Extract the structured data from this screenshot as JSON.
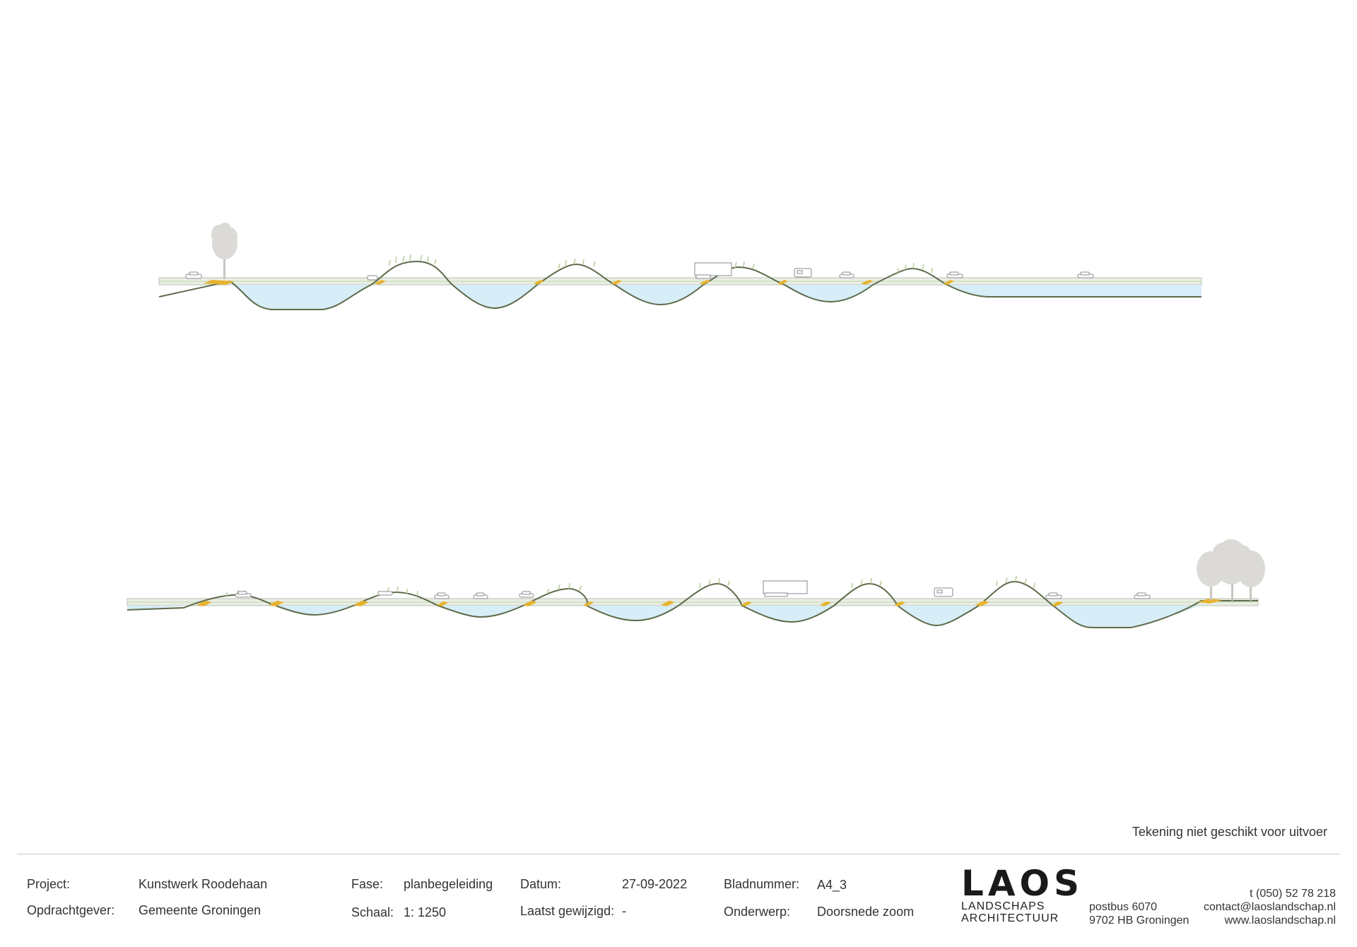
{
  "footer": {
    "disclaimer": "Tekening niet geschikt voor uitvoer",
    "project_label": "Project:",
    "project_value": "Kunstwerk Roodehaan",
    "client_label": "Opdrachtgever:",
    "client_value": "Gemeente Groningen",
    "phase_label": "Fase:",
    "phase_value": "planbegeleiding",
    "scale_label": "Schaal:",
    "scale_value": "1: 1250",
    "date_label": "Datum:",
    "date_value": "27-09-2022",
    "modified_label": "Laatst gewijzigd:",
    "modified_value": "-",
    "sheet_label": "Bladnummer:",
    "sheet_value": "A4_3",
    "subject_label": "Onderwerp:",
    "subject_value": "Doorsnede zoom",
    "logo_word": "LAOS",
    "logo_line1": "LANDSCHAPS",
    "logo_line2": "ARCHITECTUUR",
    "address1": "postbus 6070",
    "address2": "9702 HB  Groningen",
    "phone": "t (050) 52 78 218",
    "email": "contact@laoslandschap.nl",
    "website": "www.laoslandschap.nl"
  },
  "colors": {
    "water": "#d7edf7",
    "ground_line": "#5e6b4a",
    "road": "#e9ede6",
    "road_edge": "#b9c2b3",
    "accent": "#e7b22c",
    "vegetation": "#b7cc9d",
    "tree": "#dcdad7"
  }
}
